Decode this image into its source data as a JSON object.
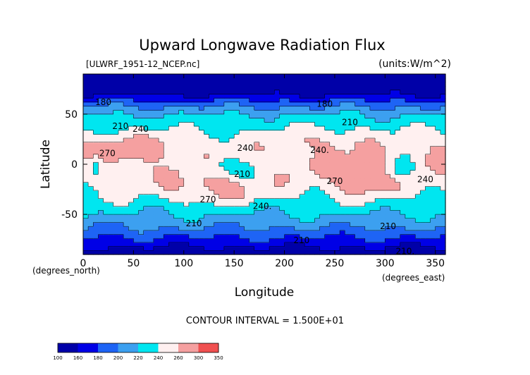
{
  "chart_data": {
    "type": "heatmap",
    "title": "Upward Longwave Radiation Flux",
    "subtitle_left": "[ULWRF_1951-12_NCEP.nc]",
    "subtitle_right": "(units:W/m^2)",
    "xlabel": "Longitude",
    "ylabel": "Latitude",
    "x_unit_note": "(degrees_east)",
    "y_unit_note": "(degrees_north)",
    "xlim": [
      0,
      360
    ],
    "ylim": [
      -90,
      90
    ],
    "x_ticks": [
      "0",
      "50",
      "100",
      "150",
      "200",
      "250",
      "300",
      "350"
    ],
    "x_tick_values": [
      0,
      50,
      100,
      150,
      200,
      250,
      300,
      350
    ],
    "y_ticks": [
      "50",
      "0",
      "-50"
    ],
    "y_tick_values": [
      50,
      0,
      -50
    ],
    "footer": "CONTOUR INTERVAL = 1.500E+01",
    "contour_labels": [
      {
        "text": "180",
        "lon": 20,
        "lat": 62
      },
      {
        "text": "180",
        "lon": 240,
        "lat": 60
      },
      {
        "text": "210",
        "lon": 37,
        "lat": 38
      },
      {
        "text": "240",
        "lon": 57,
        "lat": 35
      },
      {
        "text": "210",
        "lon": 265,
        "lat": 42
      },
      {
        "text": "270",
        "lon": 24,
        "lat": 11
      },
      {
        "text": "240",
        "lon": 161,
        "lat": 16
      },
      {
        "text": "240.",
        "lon": 235,
        "lat": 14
      },
      {
        "text": "210",
        "lon": 158,
        "lat": -10
      },
      {
        "text": "270",
        "lon": 250,
        "lat": -17
      },
      {
        "text": "270",
        "lon": 124,
        "lat": -35
      },
      {
        "text": "240.",
        "lon": 178,
        "lat": -42
      },
      {
        "text": "240",
        "lon": 340,
        "lat": -15
      },
      {
        "text": "210",
        "lon": 110,
        "lat": -59
      },
      {
        "text": "210",
        "lon": 217,
        "lat": -76
      },
      {
        "text": "210",
        "lon": 303,
        "lat": -62
      },
      {
        "text": "210.",
        "lon": 320,
        "lat": -87
      }
    ],
    "colorbar": {
      "levels": [
        "100",
        "160",
        "180",
        "200",
        "220",
        "240",
        "260",
        "300",
        "350"
      ],
      "colors": [
        "#0000a8",
        "#0000e6",
        "#1e64f5",
        "#3ca0f0",
        "#00e6f0",
        "#fff0f0",
        "#f5a0a0",
        "#f05050",
        "#ff0000"
      ]
    },
    "grid": false
  }
}
